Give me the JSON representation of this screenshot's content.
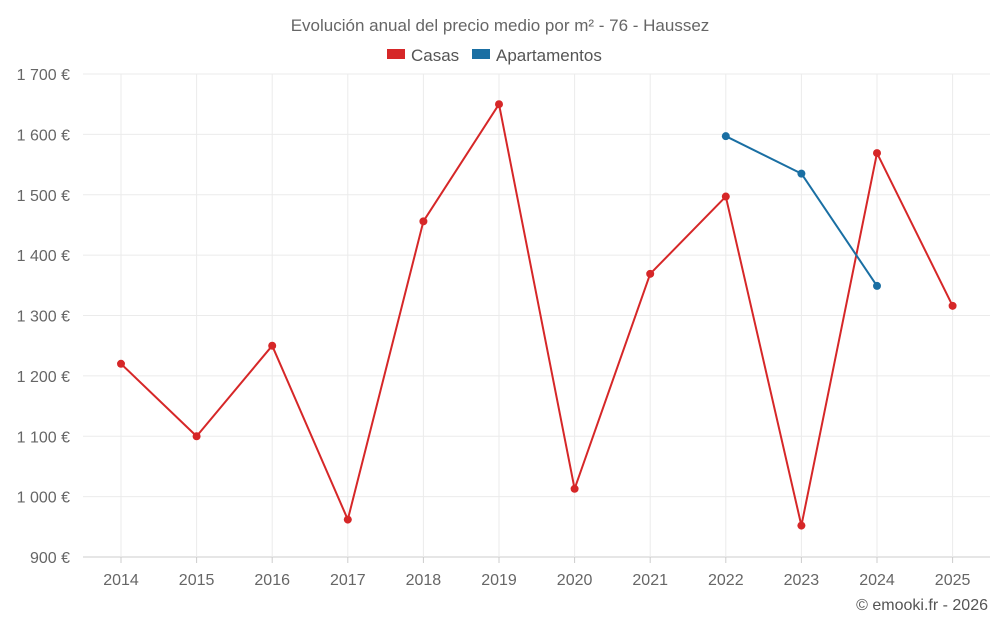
{
  "chart_data": {
    "type": "line",
    "title": "Evolución anual del precio medio por m² - 76 - Haussez",
    "categories": [
      "2014",
      "2015",
      "2016",
      "2017",
      "2018",
      "2019",
      "2020",
      "2021",
      "2022",
      "2023",
      "2024",
      "2025"
    ],
    "series": [
      {
        "name": "Casas",
        "color": "#d62728",
        "values": [
          1220,
          1100,
          1250,
          962,
          1456,
          1650,
          1013,
          1369,
          1497,
          952,
          1569,
          1316
        ]
      },
      {
        "name": "Apartamentos",
        "color": "#1a6fa3",
        "values": [
          null,
          null,
          null,
          null,
          null,
          null,
          null,
          null,
          1597,
          1535,
          1349,
          null
        ]
      }
    ],
    "ylim": [
      900,
      1700
    ],
    "yticks": [
      900,
      1000,
      1100,
      1200,
      1300,
      1400,
      1500,
      1600,
      1700
    ],
    "ytick_labels": [
      "900 €",
      "1 000 €",
      "1 100 €",
      "1 200 €",
      "1 300 €",
      "1 400 €",
      "1 500 €",
      "1 600 €",
      "1 700 €"
    ],
    "xlabel": "",
    "ylabel": "",
    "grid": true,
    "legend_position": "top-center"
  },
  "credit": "© emooki.fr - 2026"
}
